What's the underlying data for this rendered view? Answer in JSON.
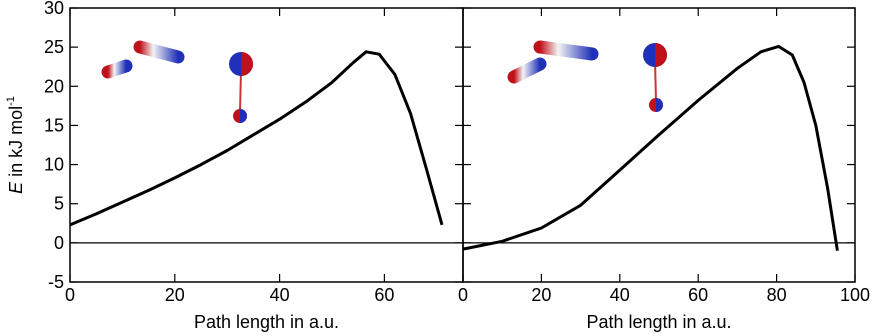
{
  "chart_data": [
    {
      "type": "line",
      "ylabel": {
        "symbol": "E",
        "text": " in kJ mol",
        "superscript": "-1"
      },
      "xlabel": "Path length in a.u.",
      "xlim": [
        0,
        75
      ],
      "xticks": [
        0,
        20,
        40,
        60
      ],
      "ylim": [
        -5,
        30
      ],
      "yticks": [
        -5,
        0,
        5,
        10,
        15,
        20,
        25,
        30
      ],
      "hline": 0,
      "series": [
        {
          "color": "#000000",
          "x": [
            0,
            5,
            10,
            15,
            20,
            25,
            30,
            35,
            40,
            45,
            50,
            54,
            56.5,
            59,
            62,
            65,
            68,
            71
          ],
          "values": [
            2.3,
            3.7,
            5.2,
            6.7,
            8.3,
            10.0,
            11.8,
            13.8,
            15.8,
            18.0,
            20.5,
            23.0,
            24.4,
            24.1,
            21.5,
            16.5,
            9.5,
            2.3
          ]
        }
      ]
    },
    {
      "type": "line",
      "xlabel": "Path length in a.u.",
      "xlim": [
        0,
        100
      ],
      "xticks": [
        0,
        20,
        40,
        60,
        80,
        100
      ],
      "ylim": [
        -5,
        30
      ],
      "yticks": [
        -5,
        0,
        5,
        10,
        15,
        20,
        25,
        30
      ],
      "hline": 0,
      "series": [
        {
          "color": "#000000",
          "x": [
            0,
            10,
            20,
            30,
            40,
            50,
            60,
            70,
            76,
            80.5,
            84,
            87,
            90,
            93,
            95.5
          ],
          "values": [
            -0.8,
            0.2,
            1.9,
            4.8,
            9.3,
            13.8,
            18.2,
            22.3,
            24.4,
            25.1,
            24.0,
            20.5,
            15.0,
            7.0,
            -1.0
          ]
        }
      ]
    }
  ]
}
